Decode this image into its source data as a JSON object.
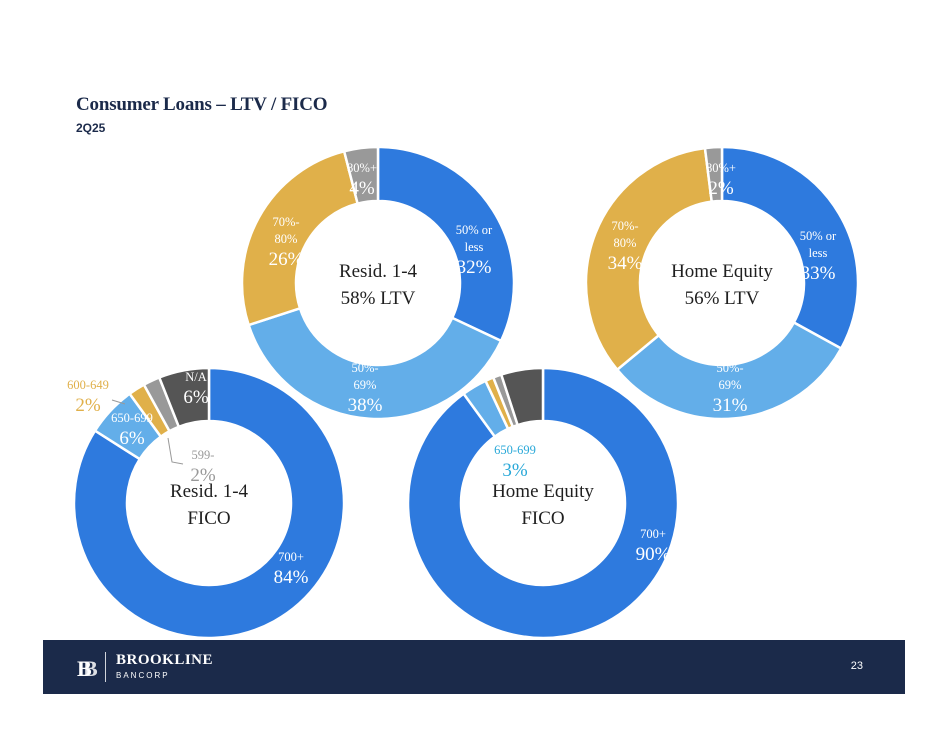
{
  "title": "Consumer Loans – LTV / FICO",
  "subtitle": "2Q25",
  "colors": {
    "dark_blue": "#2e7ade",
    "light_blue": "#63aee9",
    "gold": "#e0b04a",
    "gray": "#999999",
    "dark_gray": "#555555",
    "navy": "#1b2a4a",
    "cyan_label": "#29a8d8"
  },
  "chart_data": [
    {
      "type": "pie",
      "id": "resid-ltv",
      "center_label": [
        "Resid. 1-4",
        "58% LTV"
      ],
      "slices": [
        {
          "label": "50% or less",
          "label_lines": [
            "50% or",
            "less"
          ],
          "value": 32,
          "value_text": "32%",
          "color": "#2e7ade"
        },
        {
          "label": "50%-69%",
          "label_lines": [
            "50%-",
            "69%"
          ],
          "value": 38,
          "value_text": "38%",
          "color": "#63aee9"
        },
        {
          "label": "70%-80%",
          "label_lines": [
            "70%-",
            "80%"
          ],
          "value": 26,
          "value_text": "26%",
          "color": "#e0b04a"
        },
        {
          "label": "80%+",
          "label_lines": [
            "80%+"
          ],
          "value": 4,
          "value_text": "4%",
          "color": "#999999"
        }
      ]
    },
    {
      "type": "pie",
      "id": "home-equity-ltv",
      "center_label": [
        "Home Equity",
        "56% LTV"
      ],
      "slices": [
        {
          "label": "50% or less",
          "label_lines": [
            "50% or",
            "less"
          ],
          "value": 33,
          "value_text": "33%",
          "color": "#2e7ade"
        },
        {
          "label": "50%-69%",
          "label_lines": [
            "50%-",
            "69%"
          ],
          "value": 31,
          "value_text": "31%",
          "color": "#63aee9"
        },
        {
          "label": "70%-80%",
          "label_lines": [
            "70%-",
            "80%"
          ],
          "value": 34,
          "value_text": "34%",
          "color": "#e0b04a"
        },
        {
          "label": "80%+",
          "label_lines": [
            "80%+"
          ],
          "value": 2,
          "value_text": "2%",
          "color": "#999999"
        }
      ]
    },
    {
      "type": "pie",
      "id": "resid-fico",
      "center_label": [
        "Resid. 1-4",
        "FICO"
      ],
      "slices": [
        {
          "label": "700+",
          "label_lines": [
            "700+"
          ],
          "value": 84,
          "value_text": "84%",
          "color": "#2e7ade"
        },
        {
          "label": "650-699",
          "label_lines": [
            "650-699"
          ],
          "value": 6,
          "value_text": "6%",
          "color": "#63aee9"
        },
        {
          "label": "600-649",
          "label_lines": [
            "600-649"
          ],
          "value": 2,
          "value_text": "2%",
          "color": "#e0b04a"
        },
        {
          "label": "599-",
          "label_lines": [
            "599-"
          ],
          "value": 2,
          "value_text": "2%",
          "color": "#999999"
        },
        {
          "label": "N/A",
          "label_lines": [
            "N/A"
          ],
          "value": 6,
          "value_text": "6%",
          "color": "#555555"
        }
      ]
    },
    {
      "type": "pie",
      "id": "home-equity-fico",
      "center_label": [
        "Home Equity",
        "FICO"
      ],
      "slices": [
        {
          "label": "700+",
          "label_lines": [
            "700+"
          ],
          "value": 90,
          "value_text": "90%",
          "color": "#2e7ade"
        },
        {
          "label": "650-699",
          "label_lines": [
            "650-699"
          ],
          "value": 3,
          "value_text": "3%",
          "color": "#63aee9"
        },
        {
          "label": "",
          "label_lines": [],
          "value": 1,
          "value_text": "",
          "color": "#e0b04a"
        },
        {
          "label": "",
          "label_lines": [],
          "value": 1,
          "value_text": "",
          "color": "#999999"
        },
        {
          "label": "",
          "label_lines": [],
          "value": 5,
          "value_text": "",
          "color": "#555555"
        }
      ]
    }
  ],
  "footer": {
    "company_name": "BROOKLINE",
    "company_sub": "BANCORP",
    "page_number": "23"
  }
}
